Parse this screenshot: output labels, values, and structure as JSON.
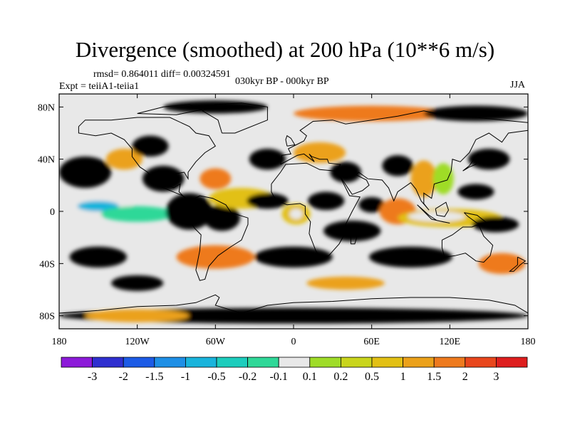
{
  "title": "Divergence (smoothed) at 200 hPa (10**6 m/s)",
  "stats": "rmsd= 0.864011 diff= 0.00324591",
  "experiment": "Expt = teiiA1-teiia1",
  "period": "030kyr BP - 000kyr BP",
  "season": "JJA",
  "map": {
    "projection": "cylindrical equidistant",
    "lon_range": [
      -180,
      180
    ],
    "lat_range": [
      -90,
      90
    ],
    "lon_ticks": [
      {
        "value": -180,
        "label": "180"
      },
      {
        "value": -120,
        "label": "120W"
      },
      {
        "value": -60,
        "label": "60W"
      },
      {
        "value": 0,
        "label": "0"
      },
      {
        "value": 60,
        "label": "60E"
      },
      {
        "value": 120,
        "label": "120E"
      },
      {
        "value": 180,
        "label": "180"
      }
    ],
    "lat_ticks": [
      {
        "value": 80,
        "label": "80N"
      },
      {
        "value": 40,
        "label": "40N"
      },
      {
        "value": 0,
        "label": "0"
      },
      {
        "value": -40,
        "label": "40S"
      },
      {
        "value": -80,
        "label": "80S"
      }
    ]
  },
  "colorbar": {
    "colors": [
      "#8c1ad9",
      "#2f2fd0",
      "#1c5be6",
      "#1e8fe6",
      "#19b4dc",
      "#1ccdbd",
      "#2fd898",
      "#e8e8e8",
      "#9fdc28",
      "#c9d51c",
      "#e2c014",
      "#eba11a",
      "#ee7a1e",
      "#e8461c",
      "#de1e1e"
    ],
    "labels": [
      "-3",
      "-2",
      "-1.5",
      "-1",
      "-0.5",
      "-0.2",
      "-0.1",
      "0.1",
      "0.2",
      "0.5",
      "1",
      "1.5",
      "2",
      "3"
    ]
  },
  "blobs": [
    {
      "lon": -150,
      "lat": 4,
      "rx": 26,
      "ry": 8,
      "level": 0
    },
    {
      "lon": -150,
      "lat": 4,
      "rx": 16,
      "ry": 4,
      "level": -3
    },
    {
      "lon": -120,
      "lat": -2,
      "rx": 28,
      "ry": 6,
      "level": -1
    },
    {
      "lon": -80,
      "lat": 0,
      "rx": 18,
      "ry": 14,
      "level": 13
    },
    {
      "lon": -82,
      "lat": 2,
      "rx": 9,
      "ry": 7,
      "level": 14
    },
    {
      "lon": -55,
      "lat": -5,
      "rx": 14,
      "ry": 10,
      "level": 12
    },
    {
      "lon": -40,
      "lat": 10,
      "rx": 25,
      "ry": 8,
      "level": 3
    },
    {
      "lon": -20,
      "lat": 8,
      "rx": 16,
      "ry": 6,
      "level": 12
    },
    {
      "lon": 2,
      "lat": -2,
      "rx": 11,
      "ry": 8,
      "level": 3
    },
    {
      "lon": 2,
      "lat": -2,
      "rx": 5,
      "ry": 4,
      "level": 0
    },
    {
      "lon": 25,
      "lat": 8,
      "rx": 14,
      "ry": 7,
      "level": 13
    },
    {
      "lon": 45,
      "lat": -15,
      "rx": 22,
      "ry": 8,
      "level": 11
    },
    {
      "lon": 60,
      "lat": 5,
      "rx": 10,
      "ry": 6,
      "level": 12
    },
    {
      "lon": 80,
      "lat": 0,
      "rx": 14,
      "ry": 10,
      "level": 5
    },
    {
      "lon": 120,
      "lat": -5,
      "rx": 40,
      "ry": 7,
      "level": 3
    },
    {
      "lon": 110,
      "lat": -4,
      "rx": 22,
      "ry": 4,
      "level": 0
    },
    {
      "lon": 155,
      "lat": -10,
      "rx": 18,
      "ry": 6,
      "level": 13
    },
    {
      "lon": 140,
      "lat": 15,
      "rx": 14,
      "ry": 6,
      "level": 12
    },
    {
      "lon": 100,
      "lat": 25,
      "rx": 10,
      "ry": 14,
      "level": 4
    },
    {
      "lon": 115,
      "lat": 25,
      "rx": 8,
      "ry": 12,
      "level": 1
    },
    {
      "lon": 80,
      "lat": 35,
      "rx": 12,
      "ry": 8,
      "level": 12
    },
    {
      "lon": -100,
      "lat": 25,
      "rx": 16,
      "ry": 10,
      "level": 12
    },
    {
      "lon": -60,
      "lat": 25,
      "rx": 12,
      "ry": 8,
      "level": 5
    },
    {
      "lon": -160,
      "lat": 30,
      "rx": 20,
      "ry": 12,
      "level": 12
    },
    {
      "lon": -130,
      "lat": 40,
      "rx": 14,
      "ry": 8,
      "level": 4
    },
    {
      "lon": -110,
      "lat": 50,
      "rx": 14,
      "ry": 8,
      "level": 12
    },
    {
      "lon": 20,
      "lat": 45,
      "rx": 20,
      "ry": 8,
      "level": 4
    },
    {
      "lon": -20,
      "lat": 40,
      "rx": 14,
      "ry": 8,
      "level": 12
    },
    {
      "lon": 40,
      "lat": 30,
      "rx": 12,
      "ry": 8,
      "level": 11
    },
    {
      "lon": 150,
      "lat": 40,
      "rx": 16,
      "ry": 8,
      "level": 12
    },
    {
      "lon": -60,
      "lat": -35,
      "rx": 30,
      "ry": 9,
      "level": 5
    },
    {
      "lon": 0,
      "lat": -35,
      "rx": 30,
      "ry": 8,
      "level": 11
    },
    {
      "lon": 90,
      "lat": -35,
      "rx": 32,
      "ry": 8,
      "level": 12
    },
    {
      "lon": -150,
      "lat": -35,
      "rx": 22,
      "ry": 8,
      "level": 12
    },
    {
      "lon": 160,
      "lat": -40,
      "rx": 18,
      "ry": 8,
      "level": 5
    },
    {
      "lon": -120,
      "lat": -55,
      "rx": 20,
      "ry": 6,
      "level": 11
    },
    {
      "lon": 40,
      "lat": -55,
      "rx": 30,
      "ry": 5,
      "level": 4
    },
    {
      "lon": 0,
      "lat": -80,
      "rx": 180,
      "ry": 6,
      "level": 11
    },
    {
      "lon": -120,
      "lat": -80,
      "rx": 40,
      "ry": 5,
      "level": 4
    },
    {
      "lon": 60,
      "lat": 75,
      "rx": 60,
      "ry": 6,
      "level": 5
    },
    {
      "lon": -60,
      "lat": 80,
      "rx": 40,
      "ry": 5,
      "level": 11
    },
    {
      "lon": 140,
      "lat": 75,
      "rx": 40,
      "ry": 6,
      "level": 12
    }
  ]
}
